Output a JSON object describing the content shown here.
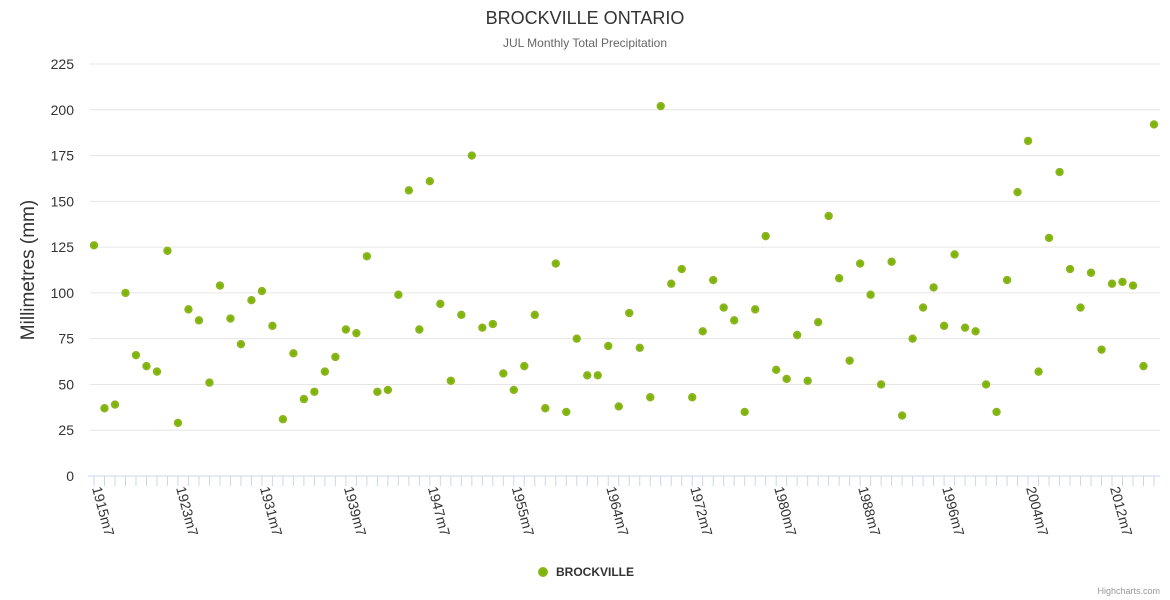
{
  "chart_data": {
    "type": "scatter",
    "title": "BROCKVILLE ONTARIO",
    "subtitle": "JUL Monthly Total Precipitation",
    "ylabel": "Millimetres (mm)",
    "xlabel": "",
    "ylim": [
      0,
      225
    ],
    "yticks": [
      0,
      25,
      50,
      75,
      100,
      125,
      150,
      175,
      200,
      225
    ],
    "x_start_year": 1915,
    "x_tick_labels": [
      {
        "year": 1915,
        "label": "1915m7"
      },
      {
        "year": 1923,
        "label": "1923m7"
      },
      {
        "year": 1931,
        "label": "1931m7"
      },
      {
        "year": 1939,
        "label": "1939m7"
      },
      {
        "year": 1947,
        "label": "1947m7"
      },
      {
        "year": 1955,
        "label": "1955m7"
      },
      {
        "year": 1964,
        "label": "1964m7"
      },
      {
        "year": 1972,
        "label": "1972m7"
      },
      {
        "year": 1980,
        "label": "1980m7"
      },
      {
        "year": 1988,
        "label": "1988m7"
      },
      {
        "year": 1996,
        "label": "1996m7"
      },
      {
        "year": 2004,
        "label": "2004m7"
      },
      {
        "year": 2012,
        "label": "2012m7"
      }
    ],
    "series": [
      {
        "name": "BROCKVILLE",
        "color": "#7cb500",
        "values": [
          126,
          37,
          39,
          100,
          66,
          60,
          57,
          123,
          29,
          91,
          85,
          51,
          104,
          86,
          72,
          96,
          101,
          82,
          31,
          67,
          42,
          46,
          57,
          65,
          80,
          78,
          120,
          46,
          47,
          99,
          156,
          80,
          161,
          94,
          52,
          88,
          175,
          81,
          83,
          56,
          47,
          60,
          88,
          37,
          116,
          35,
          75,
          55,
          55,
          71,
          38,
          89,
          70,
          43,
          202,
          105,
          113,
          43,
          79,
          107,
          92,
          85,
          35,
          91,
          131,
          58,
          53,
          77,
          52,
          84,
          142,
          108,
          63,
          116,
          99,
          50,
          117,
          33,
          75,
          92,
          103,
          82,
          121,
          81,
          79,
          50,
          35,
          107,
          155,
          183,
          57,
          130,
          166,
          113,
          92,
          111,
          69,
          105,
          106,
          104,
          60,
          192
        ]
      }
    ],
    "legend": {
      "position": "bottom-center",
      "label": "BROCKVILLE"
    },
    "credits": "Highcharts.com"
  }
}
